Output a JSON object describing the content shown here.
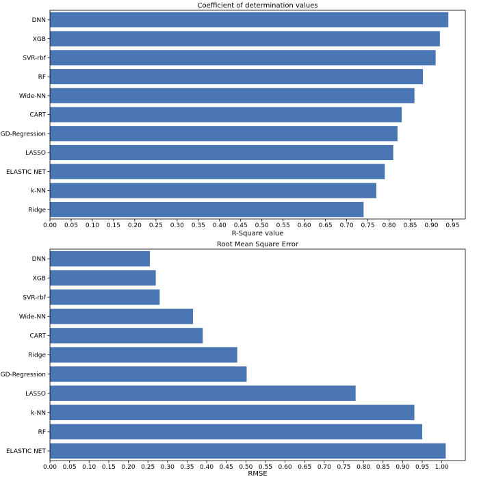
{
  "chart_data": [
    {
      "type": "bar",
      "orientation": "horizontal",
      "title": "Coefficient of determination values",
      "xlabel": "R-Square value",
      "ylabel": "",
      "xlim": [
        0,
        0.98
      ],
      "xticks": [
        "0.00",
        "0.05",
        "0.10",
        "0.15",
        "0.20",
        "0.25",
        "0.30",
        "0.35",
        "0.40",
        "0.45",
        "0.50",
        "0.55",
        "0.60",
        "0.65",
        "0.70",
        "0.75",
        "0.80",
        "0.85",
        "0.90",
        "0.95"
      ],
      "categories": [
        "DNN",
        "XGB",
        "SVR-rbf",
        "RF",
        "Wide-NN",
        "CART",
        "SGD-Regression",
        "LASSO",
        "ELASTIC NET",
        "k-NN",
        "Ridge"
      ],
      "values": [
        0.94,
        0.92,
        0.91,
        0.88,
        0.86,
        0.83,
        0.82,
        0.81,
        0.79,
        0.77,
        0.74
      ],
      "color": "#4a76b3",
      "grid": false,
      "legend": false
    },
    {
      "type": "bar",
      "orientation": "horizontal",
      "title": "Root Mean Square Error",
      "xlabel": "RMSE",
      "ylabel": "",
      "xlim": [
        0,
        1.06
      ],
      "xticks": [
        "0.00",
        "0.05",
        "0.10",
        "0.15",
        "0.20",
        "0.25",
        "0.30",
        "0.35",
        "0.40",
        "0.45",
        "0.50",
        "0.55",
        "0.60",
        "0.65",
        "0.70",
        "0.75",
        "0.80",
        "0.85",
        "0.90",
        "0.95",
        "1.00"
      ],
      "categories": [
        "DNN",
        "XGB",
        "SVR-rbf",
        "Wide-NN",
        "CART",
        "Ridge",
        "SGD-Regression",
        "LASSO",
        "k-NN",
        "RF",
        "ELASTIC NET"
      ],
      "values": [
        0.255,
        0.27,
        0.28,
        0.365,
        0.39,
        0.478,
        0.502,
        0.78,
        0.93,
        0.95,
        1.01
      ],
      "color": "#4a76b3",
      "grid": false,
      "legend": false
    }
  ]
}
